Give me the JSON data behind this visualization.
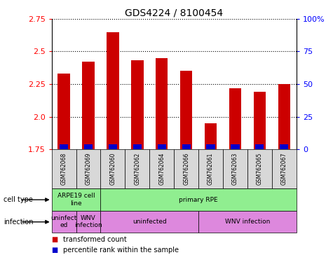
{
  "title": "GDS4224 / 8100454",
  "samples": [
    "GSM762068",
    "GSM762069",
    "GSM762060",
    "GSM762062",
    "GSM762064",
    "GSM762066",
    "GSM762061",
    "GSM762063",
    "GSM762065",
    "GSM762067"
  ],
  "red_values": [
    2.33,
    2.42,
    2.65,
    2.43,
    2.45,
    2.35,
    1.95,
    2.22,
    2.19,
    2.25
  ],
  "blue_values": [
    0.04,
    0.04,
    0.04,
    0.04,
    0.04,
    0.04,
    0.04,
    0.04,
    0.04,
    0.04
  ],
  "ylim": [
    1.75,
    2.75
  ],
  "yticks": [
    1.75,
    2.0,
    2.25,
    2.5,
    2.75
  ],
  "right_yticks": [
    0,
    25,
    50,
    75,
    100
  ],
  "right_ylabels": [
    "0",
    "25",
    "50",
    "75",
    "100%"
  ],
  "base_value": 1.75,
  "bar_color_red": "#CC0000",
  "bar_color_blue": "#0000CC",
  "bar_width": 0.5,
  "bg_color": "#d8d8d8",
  "cell_type_spans": [
    {
      "label": "ARPE19 cell\nline",
      "start": 0,
      "end": 1,
      "color": "#90EE90"
    },
    {
      "label": "primary RPE",
      "start": 2,
      "end": 9,
      "color": "#90EE90"
    }
  ],
  "infection_spans": [
    {
      "label": "uninfect\ned",
      "start": 0,
      "end": 0,
      "color": "#DD88DD"
    },
    {
      "label": "WNV\ninfection",
      "start": 1,
      "end": 1,
      "color": "#DD88DD"
    },
    {
      "label": "uninfected",
      "start": 2,
      "end": 5,
      "color": "#DD88DD"
    },
    {
      "label": "WNV infection",
      "start": 6,
      "end": 9,
      "color": "#DD88DD"
    }
  ],
  "legend_items": [
    {
      "color": "#CC0000",
      "label": "transformed count"
    },
    {
      "color": "#0000CC",
      "label": "percentile rank within the sample"
    }
  ]
}
